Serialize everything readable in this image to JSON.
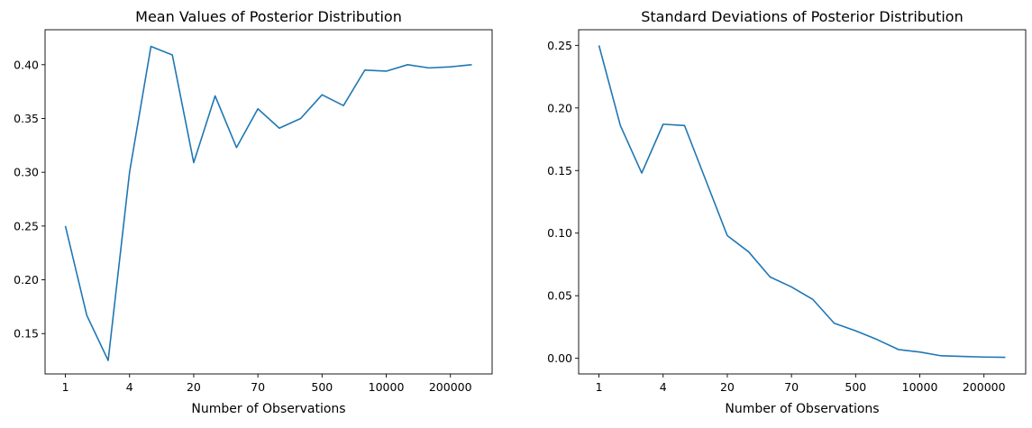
{
  "chart_data": [
    {
      "type": "line",
      "title": "Mean Values of Posterior Distribution",
      "xlabel": "Number of Observations",
      "ylabel": "",
      "x_ticks": [
        "1",
        "4",
        "20",
        "70",
        "500",
        "10000",
        "200000"
      ],
      "y_ticks": [
        "0.15",
        "0.20",
        "0.25",
        "0.30",
        "0.35",
        "0.40"
      ],
      "ylim": [
        0.1125,
        0.4325
      ],
      "grid": false,
      "series": [
        {
          "color": "#1f77b4",
          "values": [
            0.25,
            0.167,
            0.125,
            0.3,
            0.417,
            0.409,
            0.309,
            0.371,
            0.323,
            0.359,
            0.341,
            0.35,
            0.372,
            0.362,
            0.395,
            0.394,
            0.4,
            0.397,
            0.398,
            0.4
          ]
        }
      ]
    },
    {
      "type": "line",
      "title": "Standard Deviations of Posterior Distribution",
      "xlabel": "Number of Observations",
      "ylabel": "",
      "x_ticks": [
        "1",
        "4",
        "20",
        "70",
        "500",
        "10000",
        "200000"
      ],
      "y_ticks": [
        "0.00",
        "0.05",
        "0.10",
        "0.15",
        "0.20",
        "0.25"
      ],
      "ylim": [
        -0.0125,
        0.2625
      ],
      "grid": false,
      "series": [
        {
          "color": "#1f77b4",
          "values": [
            0.25,
            0.186,
            0.148,
            0.187,
            0.186,
            0.142,
            0.098,
            0.085,
            0.065,
            0.057,
            0.047,
            0.028,
            0.022,
            0.015,
            0.007,
            0.005,
            0.002,
            0.0015,
            0.001,
            0.0008
          ]
        }
      ]
    }
  ]
}
